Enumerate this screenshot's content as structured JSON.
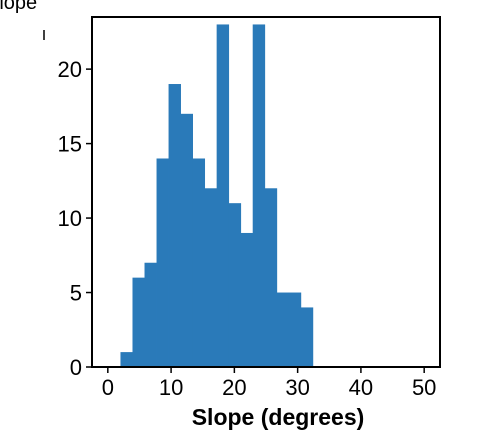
{
  "chart_data": {
    "type": "bar",
    "title_fragment": "Slope",
    "xlabel": "Slope (degrees)",
    "ylabel": "",
    "xlim": [
      -2.5,
      52.5
    ],
    "ylim": [
      0,
      23.5
    ],
    "xticks": [
      0,
      10,
      20,
      30,
      40,
      50
    ],
    "xtick_labels": [
      "0",
      "10",
      "20",
      "30",
      "40",
      "50"
    ],
    "yticks": [
      0,
      5,
      10,
      15,
      20
    ],
    "ytick_labels": [
      "0",
      "5",
      "10",
      "15",
      "20"
    ],
    "bin_width": 1.9,
    "bins": [
      {
        "x0": 2.0,
        "x1": 3.9,
        "count": 1
      },
      {
        "x0": 3.9,
        "x1": 5.8,
        "count": 6
      },
      {
        "x0": 5.8,
        "x1": 7.7,
        "count": 7
      },
      {
        "x0": 7.7,
        "x1": 9.6,
        "count": 14
      },
      {
        "x0": 9.6,
        "x1": 11.5,
        "count": 19
      },
      {
        "x0": 11.5,
        "x1": 13.4,
        "count": 17
      },
      {
        "x0": 13.4,
        "x1": 15.3,
        "count": 14
      },
      {
        "x0": 15.3,
        "x1": 17.2,
        "count": 12
      },
      {
        "x0": 17.2,
        "x1": 19.1,
        "count": 23
      },
      {
        "x0": 19.1,
        "x1": 21.0,
        "count": 11
      },
      {
        "x0": 21.0,
        "x1": 22.9,
        "count": 9
      },
      {
        "x0": 22.9,
        "x1": 24.8,
        "count": 23
      },
      {
        "x0": 24.8,
        "x1": 26.7,
        "count": 12
      },
      {
        "x0": 26.7,
        "x1": 28.6,
        "count": 5
      },
      {
        "x0": 28.6,
        "x1": 30.5,
        "count": 5
      },
      {
        "x0": 30.5,
        "x1": 32.4,
        "count": 4
      }
    ],
    "bar_color": "#2a7ab9",
    "grid": false
  }
}
